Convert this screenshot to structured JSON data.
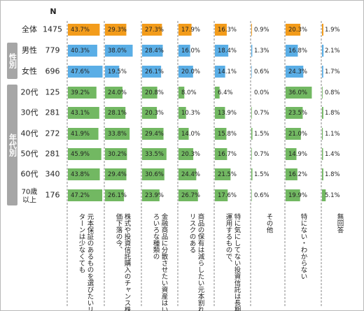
{
  "n_label": "N",
  "groups": [
    {
      "label": "性別",
      "rows": [
        1,
        2
      ]
    },
    {
      "label": "年代別",
      "rows": [
        3,
        8
      ]
    }
  ],
  "colors": {
    "overall": "#f39c1b",
    "gender": "#5aaee6",
    "age": "#72b862",
    "divider": "#8a8a8a",
    "frame": "#b8b8b8"
  },
  "chart_data": {
    "type": "bar",
    "layout": "small-multiples-horizontal-bar",
    "xlim": [
      0,
      50
    ],
    "rows": [
      {
        "label": "全体",
        "n": 1475
      },
      {
        "label": "男性",
        "n": 779
      },
      {
        "label": "女性",
        "n": 696
      },
      {
        "label": "20代",
        "n": 125
      },
      {
        "label": "30代",
        "n": 281
      },
      {
        "label": "40代",
        "n": 272
      },
      {
        "label": "50代",
        "n": 281
      },
      {
        "label": "60代",
        "n": 340
      },
      {
        "label": "70歳以上",
        "n": 176
      }
    ],
    "series": [
      {
        "name": "元本保証のあるものを選びたいリターンは少なくても",
        "values": [
          43.7,
          40.3,
          47.6,
          39.2,
          43.1,
          41.9,
          45.9,
          43.8,
          47.2
        ]
      },
      {
        "name": "株式や投資信託購入のチャンス株価下落の今、",
        "values": [
          29.3,
          38.0,
          19.5,
          24.0,
          28.1,
          33.8,
          30.2,
          29.4,
          26.1
        ]
      },
      {
        "name": "金融商品に分散させたい資産はいろいろな種類の",
        "values": [
          27.3,
          28.4,
          26.1,
          20.8,
          20.3,
          29.4,
          33.5,
          30.6,
          23.9
        ]
      },
      {
        "name": "商品の保有は減らしたい元本割れリスクのある",
        "values": [
          17.9,
          16.0,
          20.0,
          8.0,
          10.3,
          14.0,
          20.3,
          24.4,
          26.7
        ]
      },
      {
        "name": "特に気にしてない投資信託は長期運用するもので、",
        "values": [
          16.3,
          18.4,
          14.1,
          6.4,
          13.9,
          15.8,
          16.7,
          21.5,
          17.6
        ]
      },
      {
        "name": "その他",
        "values": [
          0.9,
          1.3,
          0.6,
          0.0,
          0.7,
          1.5,
          0.7,
          1.5,
          0.6
        ]
      },
      {
        "name": "特にない・わからない",
        "values": [
          20.3,
          16.8,
          24.3,
          36.0,
          23.5,
          21.0,
          14.9,
          16.2,
          19.9
        ]
      },
      {
        "name": "無回答",
        "values": [
          1.9,
          2.1,
          1.7,
          0.8,
          1.8,
          1.1,
          1.4,
          1.8,
          5.1
        ]
      }
    ],
    "value_suffix": "%"
  }
}
